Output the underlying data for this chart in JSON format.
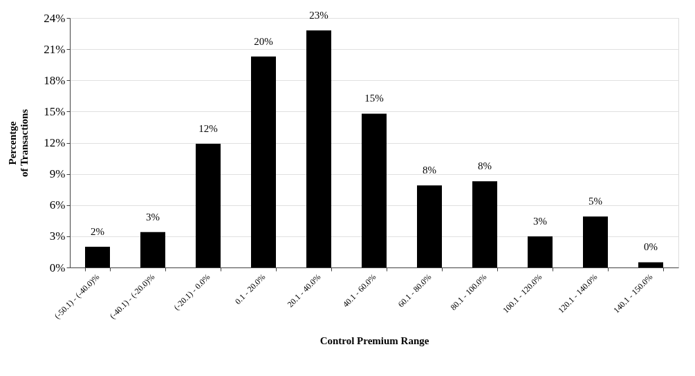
{
  "chart_data": {
    "type": "bar",
    "xlabel": "Control Premium Range",
    "ylabel": "Percentge\nof Transactions",
    "categories": [
      "(-50.1) - (-40.0)%",
      "(-40.1) - (-20.0)%",
      "(-20.1) - 0.0%",
      "0.1 - 20.0%",
      "20.1 - 40.0%",
      "40.1 - 60.0%",
      "60.1 - 80.0%",
      "80.1 - 100.0%",
      "100.1 - 120.0%",
      "120.1 - 140.0%",
      "140.1 - 150.0%"
    ],
    "values": [
      2.0,
      3.4,
      11.9,
      20.3,
      22.8,
      14.8,
      7.9,
      8.3,
      3.0,
      4.9,
      0.5
    ],
    "value_labels": [
      "2%",
      "3%",
      "12%",
      "20%",
      "23%",
      "15%",
      "8%",
      "8%",
      "3%",
      "5%",
      "0%"
    ],
    "color": "#000000",
    "ylim": [
      0,
      24
    ],
    "yticks": [
      {
        "value": 0,
        "label": "0%"
      },
      {
        "value": 3,
        "label": "3%"
      },
      {
        "value": 6,
        "label": "6%"
      },
      {
        "value": 9,
        "label": "9%"
      },
      {
        "value": 12,
        "label": "12%"
      },
      {
        "value": 15,
        "label": "15%"
      },
      {
        "value": 18,
        "label": "18%"
      },
      {
        "value": 21,
        "label": "21%"
      },
      {
        "value": 24,
        "label": "24%"
      }
    ],
    "grid": "y"
  }
}
